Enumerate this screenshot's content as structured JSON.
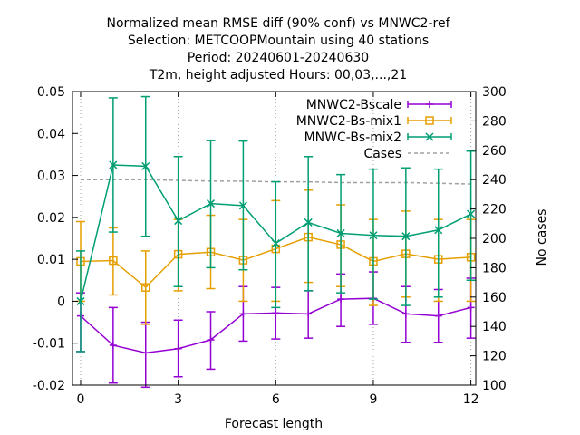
{
  "chart_data": {
    "type": "line",
    "title_lines": [
      "Normalized mean RMSE diff (90% conf) vs MNWC2-ref",
      "Selection: METCOOPMountain using    40 stations",
      "Period: 20240601-20240630",
      "T2m, height adjusted   Hours: 00,03,...,21"
    ],
    "xlabel": "Forecast length",
    "ylabel": "",
    "y2label": "No cases",
    "xlim": [
      -0.25,
      12.15
    ],
    "ylim": [
      -0.02,
      0.05
    ],
    "y2lim": [
      100,
      300
    ],
    "x_ticks": [
      0,
      3,
      6,
      9,
      12
    ],
    "x_tick_labels": [
      "0",
      "3",
      "6",
      "9",
      "12"
    ],
    "y_ticks": [
      -0.02,
      -0.01,
      0,
      0.01,
      0.02,
      0.03,
      0.04,
      0.05
    ],
    "y_tick_labels": [
      "-0.02",
      "-0.01",
      "0",
      "0.01",
      "0.02",
      "0.03",
      "0.04",
      "0.05"
    ],
    "y2_ticks": [
      100,
      120,
      140,
      160,
      180,
      200,
      220,
      240,
      260,
      280,
      300
    ],
    "y2_tick_labels": [
      "100",
      "120",
      "140",
      "160",
      "180",
      "200",
      "220",
      "240",
      "260",
      "280",
      "300"
    ],
    "grid_x": [
      0,
      3,
      6,
      9,
      12
    ],
    "grid_style": "dotted",
    "legend_position": "top-right",
    "series": [
      {
        "name": "MNWC2-Bscale",
        "color": "#9400d3",
        "marker": "plus",
        "axis": "y",
        "x": [
          0,
          1,
          2,
          3,
          4,
          5,
          6,
          7,
          8,
          9,
          10,
          11,
          12
        ],
        "y": [
          -0.0035,
          -0.0105,
          -0.0123,
          -0.0113,
          -0.0092,
          -0.003,
          -0.0028,
          -0.003,
          0.0005,
          0.0007,
          -0.003,
          -0.0035,
          -0.0015
        ],
        "err_low": [
          -0.012,
          -0.0195,
          -0.0205,
          -0.018,
          -0.0162,
          -0.0095,
          -0.009,
          -0.0088,
          -0.006,
          -0.0055,
          -0.0098,
          -0.0098,
          -0.0088
        ],
        "err_high": [
          0.002,
          -0.0015,
          -0.005,
          -0.0045,
          -0.0025,
          0.0035,
          0.0033,
          0.0025,
          0.0065,
          0.007,
          0.0035,
          0.0028,
          0.0055
        ]
      },
      {
        "name": "MNWC2-Bs-mix1",
        "color": "#e69f00",
        "marker": "square",
        "axis": "y",
        "x": [
          0,
          1,
          2,
          3,
          4,
          5,
          6,
          7,
          8,
          9,
          10,
          11,
          12
        ],
        "y": [
          0.0095,
          0.0097,
          0.0033,
          0.0112,
          0.0117,
          0.0098,
          0.0125,
          0.0153,
          0.0135,
          0.0095,
          0.0113,
          0.01,
          0.0105
        ],
        "err_low": [
          0.0,
          0.0015,
          -0.0055,
          0.0025,
          0.003,
          0.0,
          0.0,
          0.0045,
          0.0035,
          -0.001,
          0.001,
          0.0,
          0.0
        ],
        "err_high": [
          0.019,
          0.0175,
          0.012,
          0.0195,
          0.0205,
          0.0195,
          0.024,
          0.0265,
          0.023,
          0.0195,
          0.0215,
          0.0195,
          0.0195
        ]
      },
      {
        "name": "MNWC-Bs-mix2",
        "color": "#009e73",
        "marker": "x",
        "axis": "y",
        "x": [
          0,
          1,
          2,
          3,
          4,
          5,
          6,
          7,
          8,
          9,
          10,
          11,
          12
        ],
        "y": [
          0.0,
          0.0325,
          0.0322,
          0.0192,
          0.0233,
          0.0228,
          0.0138,
          0.0188,
          0.0162,
          0.0157,
          0.0155,
          0.017,
          0.0208
        ],
        "err_low": [
          -0.012,
          0.0165,
          0.0155,
          0.0035,
          0.008,
          0.0075,
          -0.0015,
          0.0025,
          0.002,
          0.0005,
          -0.001,
          0.001,
          0.005
        ],
        "err_high": [
          0.012,
          0.0485,
          0.0488,
          0.0345,
          0.0383,
          0.0382,
          0.0285,
          0.0345,
          0.0302,
          0.0315,
          0.0318,
          0.0315,
          0.0358
        ]
      },
      {
        "name": "Cases",
        "color": "#a0a0a0",
        "marker": "none",
        "dashed": true,
        "axis": "y2",
        "x": [
          0,
          1,
          2,
          3,
          4,
          5,
          6,
          7,
          8,
          9,
          10,
          11,
          12
        ],
        "y": [
          240,
          240,
          240,
          239.5,
          239,
          239,
          238.5,
          238.5,
          238,
          238,
          238,
          237.5,
          237
        ]
      }
    ]
  }
}
